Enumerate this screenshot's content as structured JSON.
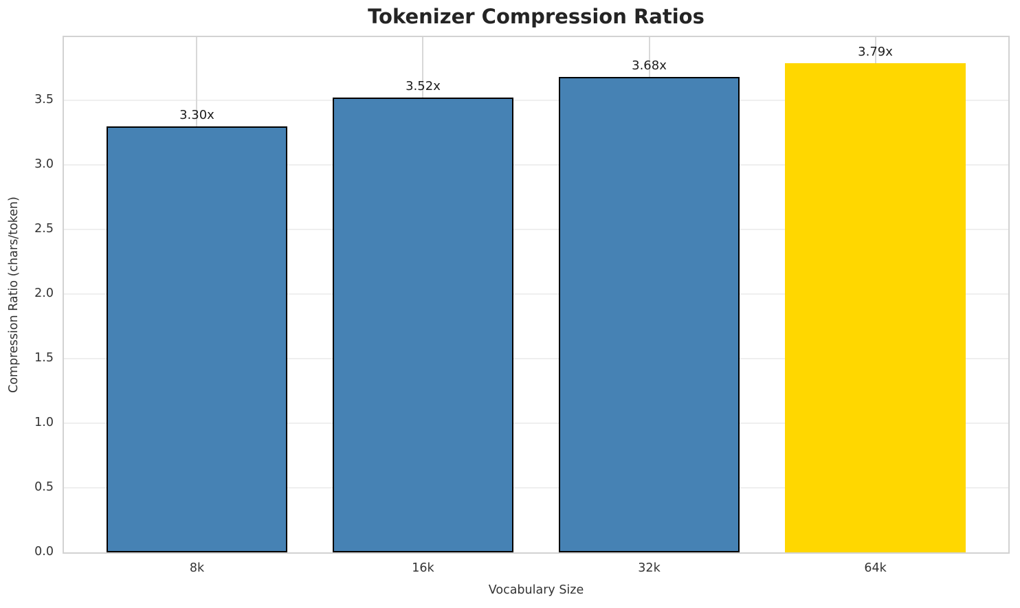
{
  "chart_data": {
    "type": "bar",
    "title": "Tokenizer Compression Ratios",
    "xlabel": "Vocabulary Size",
    "ylabel": "Compression Ratio (chars/token)",
    "categories": [
      "8k",
      "16k",
      "32k",
      "64k"
    ],
    "values": [
      3.3,
      3.52,
      3.68,
      3.79
    ],
    "bar_value_labels": [
      "3.30x",
      "3.52x",
      "3.68x",
      "3.79x"
    ],
    "bar_colors": [
      "#4682b4",
      "#4682b4",
      "#4682b4",
      "#ffd700"
    ],
    "bar_edge_colors": [
      "#000000",
      "#000000",
      "#000000",
      "none"
    ],
    "default_color": "#4682b4",
    "highlight_color": "#ffd700",
    "ylim": [
      0,
      3.99
    ],
    "ytick_labels": [
      "0.0",
      "0.5",
      "1.0",
      "1.5",
      "2.0",
      "2.5",
      "3.0",
      "3.5"
    ],
    "grid": true,
    "legend": "none",
    "background_color": "#ffffff"
  }
}
